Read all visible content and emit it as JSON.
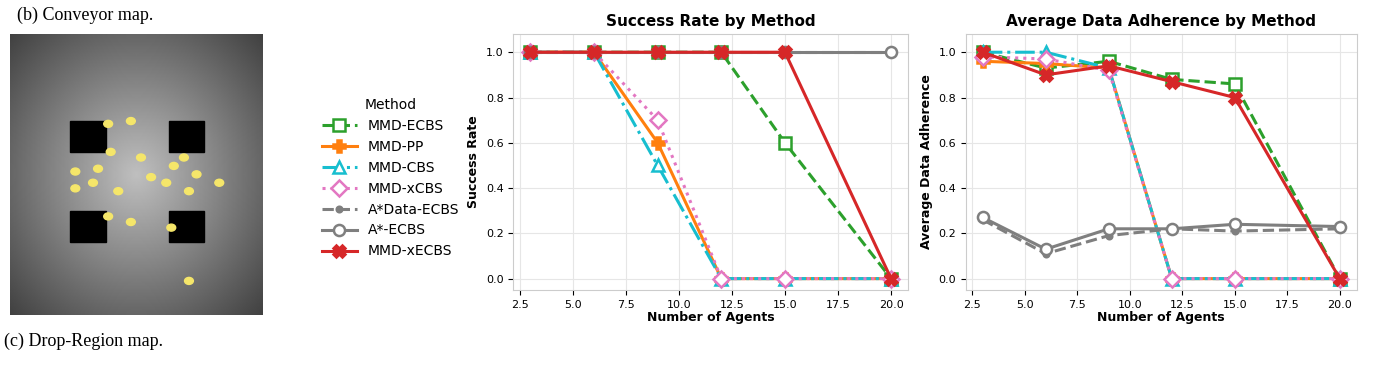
{
  "captions": [
    "(b) Conveyor map.",
    "(c) Drop-Region map."
  ],
  "legend_title": "Method",
  "chart_data": [
    {
      "type": "line",
      "title": "Success Rate by Method",
      "x_label": "Number of Agents",
      "y_label": "Success Rate",
      "x": [
        3,
        6,
        9,
        12,
        15,
        20
      ],
      "xlim": [
        2.2,
        20.8
      ],
      "xticks": [
        2.5,
        {
          "value": 5,
          "label": "5.0"
        },
        7.5,
        {
          "value": 10,
          "label": "10.0"
        },
        12.5,
        {
          "value": 15,
          "label": "15.0"
        },
        17.5,
        {
          "value": 20,
          "label": "20.0"
        }
      ],
      "ylim": [
        -0.05,
        1.08
      ],
      "yticks": [
        {
          "value": 0,
          "label": "0.0"
        },
        0.2,
        0.4,
        0.6,
        0.8,
        {
          "value": 1,
          "label": "1.0"
        }
      ],
      "grid": true,
      "series": [
        {
          "name": "MMD-ECBS",
          "color": "#2ca02c",
          "marker": "square",
          "line_style": "dashed",
          "values": [
            1.0,
            1.0,
            1.0,
            1.0,
            0.6,
            0.0
          ]
        },
        {
          "name": "MMD-PP",
          "color": "#ff7f0e",
          "marker": "plus",
          "line_style": "solid",
          "values": [
            1.0,
            1.0,
            0.6,
            0.0,
            0.0,
            0.0
          ]
        },
        {
          "name": "MMD-CBS",
          "color": "#17becf",
          "marker": "triangle",
          "line_style": "dashdot",
          "values": [
            1.0,
            1.0,
            0.5,
            0.0,
            0.0,
            0.0
          ]
        },
        {
          "name": "MMD-xCBS",
          "color": "#e377c2",
          "marker": "diamond",
          "line_style": "dotted",
          "values": [
            1.0,
            1.0,
            0.7,
            0.0,
            0.0,
            0.0
          ]
        },
        {
          "name": "A*Data-ECBS",
          "color": "#7f7f7f",
          "marker": "point",
          "line_style": "dashed",
          "values": [
            1.0,
            1.0,
            1.0,
            1.0,
            1.0,
            1.0
          ]
        },
        {
          "name": "A*-ECBS",
          "color": "#7f7f7f",
          "marker": "circle",
          "line_style": "solid",
          "values": [
            1.0,
            1.0,
            1.0,
            1.0,
            1.0,
            1.0
          ]
        },
        {
          "name": "MMD-xECBS",
          "color": "#d62728",
          "marker": "x",
          "line_style": "solid",
          "values": [
            1.0,
            1.0,
            1.0,
            1.0,
            1.0,
            0.0
          ]
        }
      ]
    },
    {
      "type": "line",
      "title": "Average Data Adherence by Method",
      "x_label": "Number of Agents",
      "y_label": "Average Data Adherence",
      "x": [
        3,
        6,
        9,
        12,
        15,
        20
      ],
      "xlim": [
        2.2,
        20.8
      ],
      "xticks": [
        2.5,
        {
          "value": 5,
          "label": "5.0"
        },
        7.5,
        {
          "value": 10,
          "label": "10.0"
        },
        12.5,
        {
          "value": 15,
          "label": "15.0"
        },
        17.5,
        {
          "value": 20,
          "label": "20.0"
        }
      ],
      "ylim": [
        -0.05,
        1.08
      ],
      "yticks": [
        {
          "value": 0,
          "label": "0.0"
        },
        0.2,
        0.4,
        0.6,
        0.8,
        {
          "value": 1,
          "label": "1.0"
        }
      ],
      "grid": true,
      "series": [
        {
          "name": "MMD-ECBS",
          "color": "#2ca02c",
          "marker": "square",
          "line_style": "dashed",
          "values": [
            1.0,
            0.93,
            0.96,
            0.88,
            0.86,
            0.0
          ]
        },
        {
          "name": "MMD-PP",
          "color": "#ff7f0e",
          "marker": "plus",
          "line_style": "solid",
          "values": [
            0.96,
            0.95,
            0.93,
            0.0,
            0.0,
            0.0
          ]
        },
        {
          "name": "MMD-CBS",
          "color": "#17becf",
          "marker": "triangle",
          "line_style": "dashdot",
          "values": [
            1.0,
            1.0,
            0.93,
            0.0,
            0.0,
            0.0
          ]
        },
        {
          "name": "MMD-xCBS",
          "color": "#e377c2",
          "marker": "diamond",
          "line_style": "dotted",
          "values": [
            0.98,
            0.97,
            0.92,
            0.0,
            0.0,
            0.0
          ]
        },
        {
          "name": "A*Data-ECBS",
          "color": "#7f7f7f",
          "marker": "point",
          "line_style": "dashed",
          "values": [
            0.26,
            0.11,
            0.19,
            0.22,
            0.21,
            0.22
          ]
        },
        {
          "name": "A*-ECBS",
          "color": "#7f7f7f",
          "marker": "circle",
          "line_style": "solid",
          "values": [
            0.27,
            0.13,
            0.22,
            0.22,
            0.24,
            0.23
          ]
        },
        {
          "name": "MMD-xECBS",
          "color": "#d62728",
          "marker": "x",
          "line_style": "solid",
          "values": [
            1.0,
            0.9,
            0.94,
            0.87,
            0.8,
            0.0
          ]
        }
      ]
    }
  ]
}
